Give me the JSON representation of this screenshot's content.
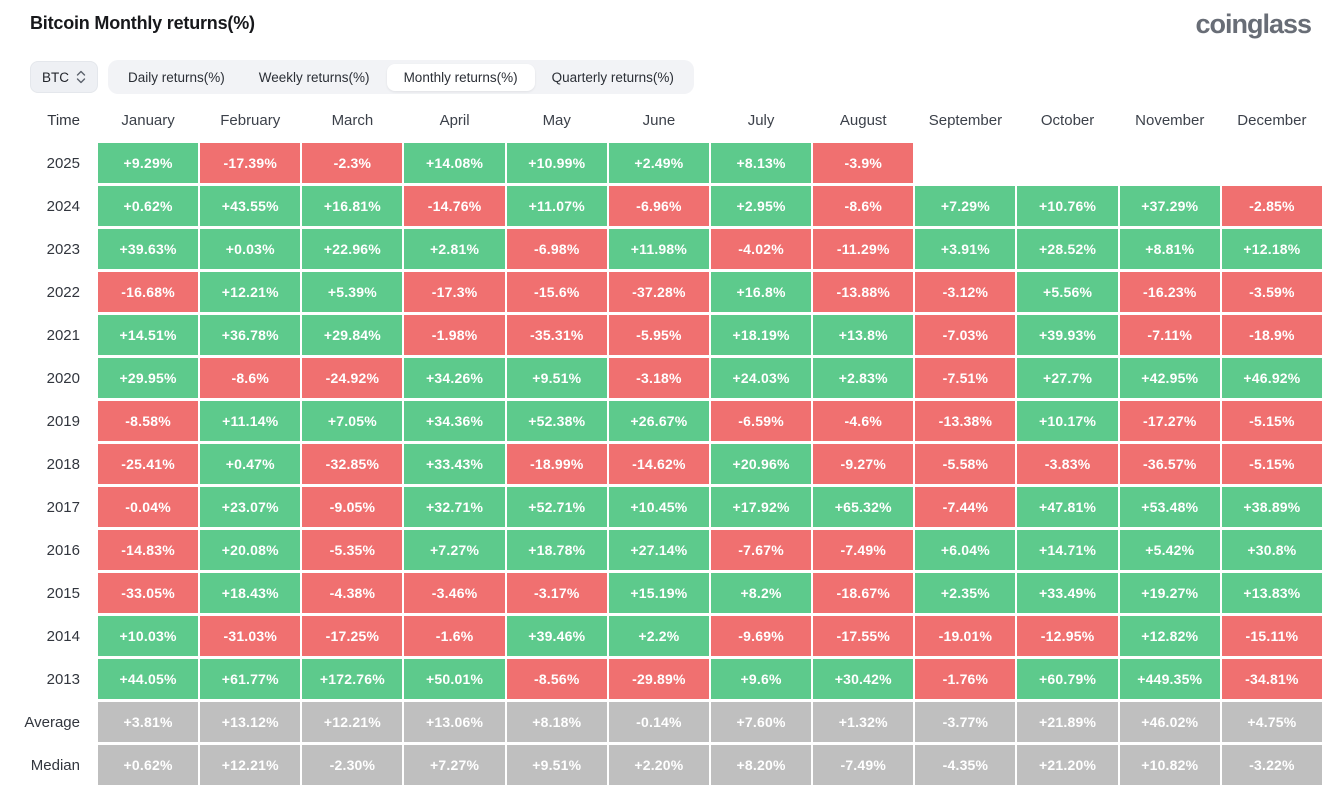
{
  "header": {
    "title": "Bitcoin Monthly returns(%)",
    "brand": "coinglass"
  },
  "controls": {
    "coin_selector": {
      "label": "BTC",
      "icon": "updown-chevron-icon"
    },
    "tabs": [
      {
        "label": "Daily returns(%)",
        "active": false
      },
      {
        "label": "Weekly returns(%)",
        "active": false
      },
      {
        "label": "Monthly returns(%)",
        "active": true
      },
      {
        "label": "Quarterly returns(%)",
        "active": false
      }
    ]
  },
  "colors": {
    "positive": "#5dca8c",
    "negative": "#f07070",
    "summary": "#bfbfbf"
  },
  "table": {
    "time_header": "Time",
    "months": [
      "January",
      "February",
      "March",
      "April",
      "May",
      "June",
      "July",
      "August",
      "September",
      "October",
      "November",
      "December"
    ],
    "rows": [
      {
        "label": "2025",
        "type": "year",
        "values": [
          "+9.29%",
          "-17.39%",
          "-2.3%",
          "+14.08%",
          "+10.99%",
          "+2.49%",
          "+8.13%",
          "-3.9%",
          null,
          null,
          null,
          null
        ]
      },
      {
        "label": "2024",
        "type": "year",
        "values": [
          "+0.62%",
          "+43.55%",
          "+16.81%",
          "-14.76%",
          "+11.07%",
          "-6.96%",
          "+2.95%",
          "-8.6%",
          "+7.29%",
          "+10.76%",
          "+37.29%",
          "-2.85%"
        ]
      },
      {
        "label": "2023",
        "type": "year",
        "values": [
          "+39.63%",
          "+0.03%",
          "+22.96%",
          "+2.81%",
          "-6.98%",
          "+11.98%",
          "-4.02%",
          "-11.29%",
          "+3.91%",
          "+28.52%",
          "+8.81%",
          "+12.18%"
        ]
      },
      {
        "label": "2022",
        "type": "year",
        "values": [
          "-16.68%",
          "+12.21%",
          "+5.39%",
          "-17.3%",
          "-15.6%",
          "-37.28%",
          "+16.8%",
          "-13.88%",
          "-3.12%",
          "+5.56%",
          "-16.23%",
          "-3.59%"
        ]
      },
      {
        "label": "2021",
        "type": "year",
        "values": [
          "+14.51%",
          "+36.78%",
          "+29.84%",
          "-1.98%",
          "-35.31%",
          "-5.95%",
          "+18.19%",
          "+13.8%",
          "-7.03%",
          "+39.93%",
          "-7.11%",
          "-18.9%"
        ]
      },
      {
        "label": "2020",
        "type": "year",
        "values": [
          "+29.95%",
          "-8.6%",
          "-24.92%",
          "+34.26%",
          "+9.51%",
          "-3.18%",
          "+24.03%",
          "+2.83%",
          "-7.51%",
          "+27.7%",
          "+42.95%",
          "+46.92%"
        ]
      },
      {
        "label": "2019",
        "type": "year",
        "values": [
          "-8.58%",
          "+11.14%",
          "+7.05%",
          "+34.36%",
          "+52.38%",
          "+26.67%",
          "-6.59%",
          "-4.6%",
          "-13.38%",
          "+10.17%",
          "-17.27%",
          "-5.15%"
        ]
      },
      {
        "label": "2018",
        "type": "year",
        "values": [
          "-25.41%",
          "+0.47%",
          "-32.85%",
          "+33.43%",
          "-18.99%",
          "-14.62%",
          "+20.96%",
          "-9.27%",
          "-5.58%",
          "-3.83%",
          "-36.57%",
          "-5.15%"
        ]
      },
      {
        "label": "2017",
        "type": "year",
        "values": [
          "-0.04%",
          "+23.07%",
          "-9.05%",
          "+32.71%",
          "+52.71%",
          "+10.45%",
          "+17.92%",
          "+65.32%",
          "-7.44%",
          "+47.81%",
          "+53.48%",
          "+38.89%"
        ]
      },
      {
        "label": "2016",
        "type": "year",
        "values": [
          "-14.83%",
          "+20.08%",
          "-5.35%",
          "+7.27%",
          "+18.78%",
          "+27.14%",
          "-7.67%",
          "-7.49%",
          "+6.04%",
          "+14.71%",
          "+5.42%",
          "+30.8%"
        ]
      },
      {
        "label": "2015",
        "type": "year",
        "values": [
          "-33.05%",
          "+18.43%",
          "-4.38%",
          "-3.46%",
          "-3.17%",
          "+15.19%",
          "+8.2%",
          "-18.67%",
          "+2.35%",
          "+33.49%",
          "+19.27%",
          "+13.83%"
        ]
      },
      {
        "label": "2014",
        "type": "year",
        "values": [
          "+10.03%",
          "-31.03%",
          "-17.25%",
          "-1.6%",
          "+39.46%",
          "+2.2%",
          "-9.69%",
          "-17.55%",
          "-19.01%",
          "-12.95%",
          "+12.82%",
          "-15.11%"
        ]
      },
      {
        "label": "2013",
        "type": "year",
        "values": [
          "+44.05%",
          "+61.77%",
          "+172.76%",
          "+50.01%",
          "-8.56%",
          "-29.89%",
          "+9.6%",
          "+30.42%",
          "-1.76%",
          "+60.79%",
          "+449.35%",
          "-34.81%"
        ]
      },
      {
        "label": "Average",
        "type": "summary",
        "values": [
          "+3.81%",
          "+13.12%",
          "+12.21%",
          "+13.06%",
          "+8.18%",
          "-0.14%",
          "+7.60%",
          "+1.32%",
          "-3.77%",
          "+21.89%",
          "+46.02%",
          "+4.75%"
        ]
      },
      {
        "label": "Median",
        "type": "summary",
        "values": [
          "+0.62%",
          "+12.21%",
          "-2.30%",
          "+7.27%",
          "+9.51%",
          "+2.20%",
          "+8.20%",
          "-7.49%",
          "-4.35%",
          "+21.20%",
          "+10.82%",
          "-3.22%"
        ]
      }
    ]
  }
}
